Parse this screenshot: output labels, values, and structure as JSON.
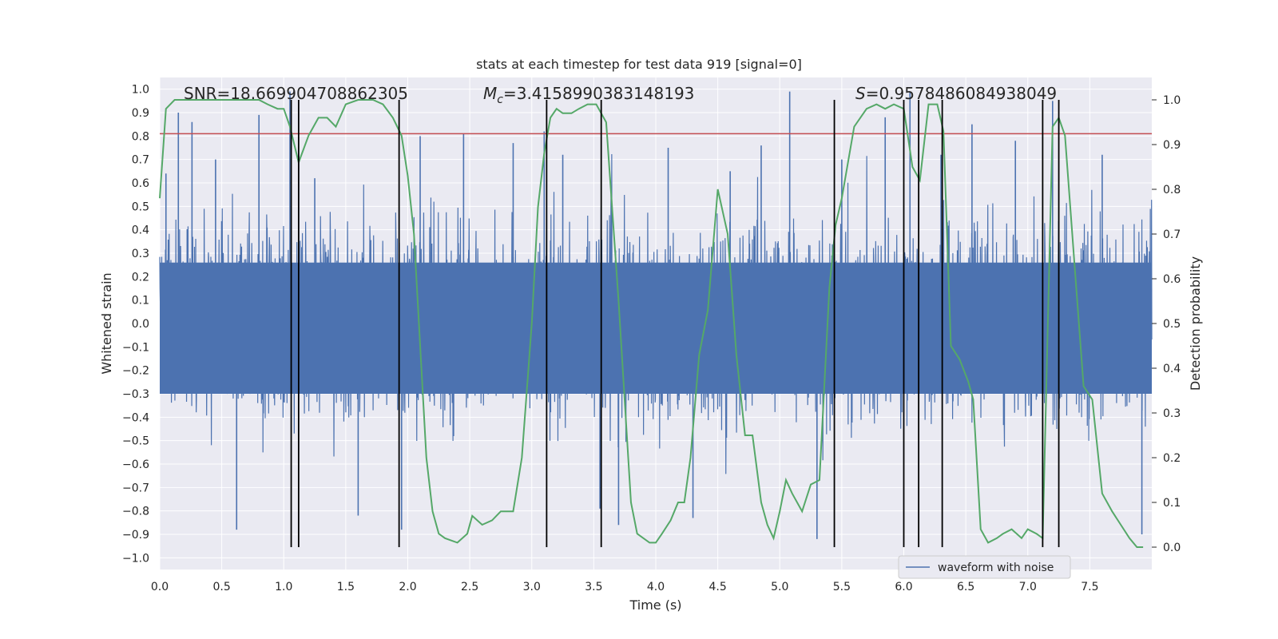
{
  "chart_data": {
    "type": "line",
    "title": "stats at each timestep for test data 919 [signal=0]",
    "xlabel": "Time (s)",
    "ylabel": "Whitened strain",
    "y2label": "Detection probability",
    "xlim": [
      0.0,
      8.0
    ],
    "ylim": [
      -1.05,
      1.05
    ],
    "y2lim": [
      -0.05,
      1.05
    ],
    "x_ticks": [
      0.0,
      0.5,
      1.0,
      1.5,
      2.0,
      2.5,
      3.0,
      3.5,
      4.0,
      4.5,
      5.0,
      5.5,
      6.0,
      6.5,
      7.0,
      7.5
    ],
    "x_tick_labels": [
      "0.0",
      "0.5",
      "1.0",
      "1.5",
      "2.0",
      "2.5",
      "3.0",
      "3.5",
      "4.0",
      "4.5",
      "5.0",
      "5.5",
      "6.0",
      "6.5",
      "7.0",
      "7.5"
    ],
    "y_ticks": [
      1.0,
      0.9,
      0.8,
      0.7,
      0.6,
      0.5,
      0.4,
      0.3,
      0.2,
      0.1,
      0.0,
      -0.1,
      -0.2,
      -0.3,
      -0.4,
      -0.5,
      -0.6,
      -0.7,
      -0.8,
      -0.9,
      -1.0
    ],
    "y_tick_labels": [
      "1.0",
      "0.9",
      "0.8",
      "0.7",
      "0.6",
      "0.5",
      "0.4",
      "0.3",
      "0.2",
      "0.1",
      "0.0",
      "−0.1",
      "−0.2",
      "−0.3",
      "−0.4",
      "−0.5",
      "−0.6",
      "−0.7",
      "−0.8",
      "−0.9",
      "−1.0"
    ],
    "y2_ticks": [
      1.0,
      0.9,
      0.8,
      0.7,
      0.6,
      0.5,
      0.4,
      0.3,
      0.2,
      0.1,
      0.0
    ],
    "y2_tick_labels": [
      "1.0",
      "0.9",
      "0.8",
      "0.7",
      "0.6",
      "0.5",
      "0.4",
      "0.3",
      "0.2",
      "0.1",
      "0.0"
    ],
    "grid": true,
    "legend_position": "bottom-right",
    "annotations": {
      "snr": "SNR=18.669904708862305",
      "mc_symbol": "M",
      "mc_subscript": "c",
      "mc_value": "=3.4158990383148193",
      "s_symbol": "S",
      "s_value": "=0.9578486084938049"
    },
    "waveform": {
      "name": "waveform with noise",
      "color": "#4c72b0",
      "x_range": [
        0.0,
        8.0
      ],
      "typical_amplitude": 0.45,
      "spike_times": [
        0.05,
        0.15,
        0.26,
        0.45,
        0.62,
        0.8,
        1.05,
        1.12,
        1.25,
        1.6,
        1.95,
        2.1,
        2.45,
        2.85,
        3.1,
        3.25,
        3.55,
        3.7,
        4.1,
        4.3,
        4.6,
        4.85,
        5.08,
        5.3,
        5.5,
        5.85,
        6.05,
        6.3,
        6.55,
        6.9,
        7.2,
        7.6,
        7.92
      ],
      "spike_values": [
        0.64,
        0.9,
        0.86,
        0.7,
        -0.88,
        0.89,
        0.99,
        0.72,
        0.62,
        -0.82,
        -0.88,
        0.8,
        0.81,
        0.77,
        0.82,
        0.72,
        -0.79,
        -0.86,
        0.75,
        -0.83,
        0.65,
        0.76,
        0.99,
        -0.92,
        0.7,
        0.88,
        0.99,
        0.72,
        0.85,
        0.78,
        0.95,
        0.72,
        -0.9
      ]
    },
    "threshold": {
      "value": 0.81,
      "color": "#c44e52"
    },
    "probability": {
      "color": "#55a868",
      "x": [
        0.0,
        0.05,
        0.12,
        0.25,
        0.45,
        0.6,
        0.72,
        0.8,
        0.87,
        0.95,
        1.0,
        1.05,
        1.12,
        1.2,
        1.28,
        1.35,
        1.42,
        1.5,
        1.6,
        1.72,
        1.8,
        1.88,
        1.95,
        2.0,
        2.05,
        2.1,
        2.15,
        2.2,
        2.25,
        2.3,
        2.4,
        2.48,
        2.52,
        2.6,
        2.68,
        2.75,
        2.85,
        2.92,
        3.0,
        3.05,
        3.1,
        3.15,
        3.2,
        3.25,
        3.32,
        3.38,
        3.45,
        3.52,
        3.56,
        3.6,
        3.7,
        3.8,
        3.85,
        3.9,
        3.95,
        4.0,
        4.05,
        4.12,
        4.18,
        4.23,
        4.28,
        4.35,
        4.42,
        4.5,
        4.58,
        4.65,
        4.72,
        4.78,
        4.85,
        4.9,
        4.95,
        5.0,
        5.05,
        5.1,
        5.18,
        5.25,
        5.32,
        5.4,
        5.45,
        5.5,
        5.6,
        5.7,
        5.78,
        5.85,
        5.92,
        6.0,
        6.07,
        6.13,
        6.2,
        6.27,
        6.32,
        6.38,
        6.45,
        6.52,
        6.56,
        6.62,
        6.68,
        6.75,
        6.8,
        6.87,
        6.95,
        7.0,
        7.07,
        7.12,
        7.2,
        7.25,
        7.3,
        7.38,
        7.45,
        7.52,
        7.6,
        7.68,
        7.75,
        7.82,
        7.88,
        7.93
      ],
      "y": [
        0.78,
        0.98,
        1.0,
        1.0,
        1.0,
        1.0,
        1.0,
        1.0,
        0.99,
        0.98,
        0.98,
        0.94,
        0.86,
        0.92,
        0.96,
        0.96,
        0.94,
        0.99,
        1.0,
        1.0,
        0.99,
        0.96,
        0.92,
        0.83,
        0.7,
        0.45,
        0.2,
        0.08,
        0.03,
        0.02,
        0.01,
        0.03,
        0.07,
        0.05,
        0.06,
        0.08,
        0.08,
        0.2,
        0.5,
        0.76,
        0.88,
        0.96,
        0.98,
        0.97,
        0.97,
        0.98,
        0.99,
        0.99,
        0.97,
        0.95,
        0.55,
        0.1,
        0.03,
        0.02,
        0.01,
        0.01,
        0.03,
        0.06,
        0.1,
        0.1,
        0.2,
        0.43,
        0.53,
        0.8,
        0.7,
        0.43,
        0.25,
        0.25,
        0.1,
        0.05,
        0.02,
        0.08,
        0.15,
        0.12,
        0.08,
        0.14,
        0.15,
        0.58,
        0.72,
        0.78,
        0.94,
        0.98,
        0.99,
        0.98,
        0.99,
        0.98,
        0.85,
        0.82,
        0.99,
        0.99,
        0.93,
        0.45,
        0.42,
        0.37,
        0.33,
        0.04,
        0.01,
        0.02,
        0.03,
        0.04,
        0.02,
        0.04,
        0.03,
        0.02,
        0.94,
        0.96,
        0.92,
        0.62,
        0.36,
        0.33,
        0.12,
        0.08,
        0.05,
        0.02,
        0.0,
        0.0
      ]
    },
    "event_markers": {
      "color": "#000000",
      "x": [
        1.06,
        1.12,
        1.93,
        3.12,
        3.56,
        5.44,
        6.0,
        6.12,
        6.31,
        7.12,
        7.25
      ]
    }
  }
}
